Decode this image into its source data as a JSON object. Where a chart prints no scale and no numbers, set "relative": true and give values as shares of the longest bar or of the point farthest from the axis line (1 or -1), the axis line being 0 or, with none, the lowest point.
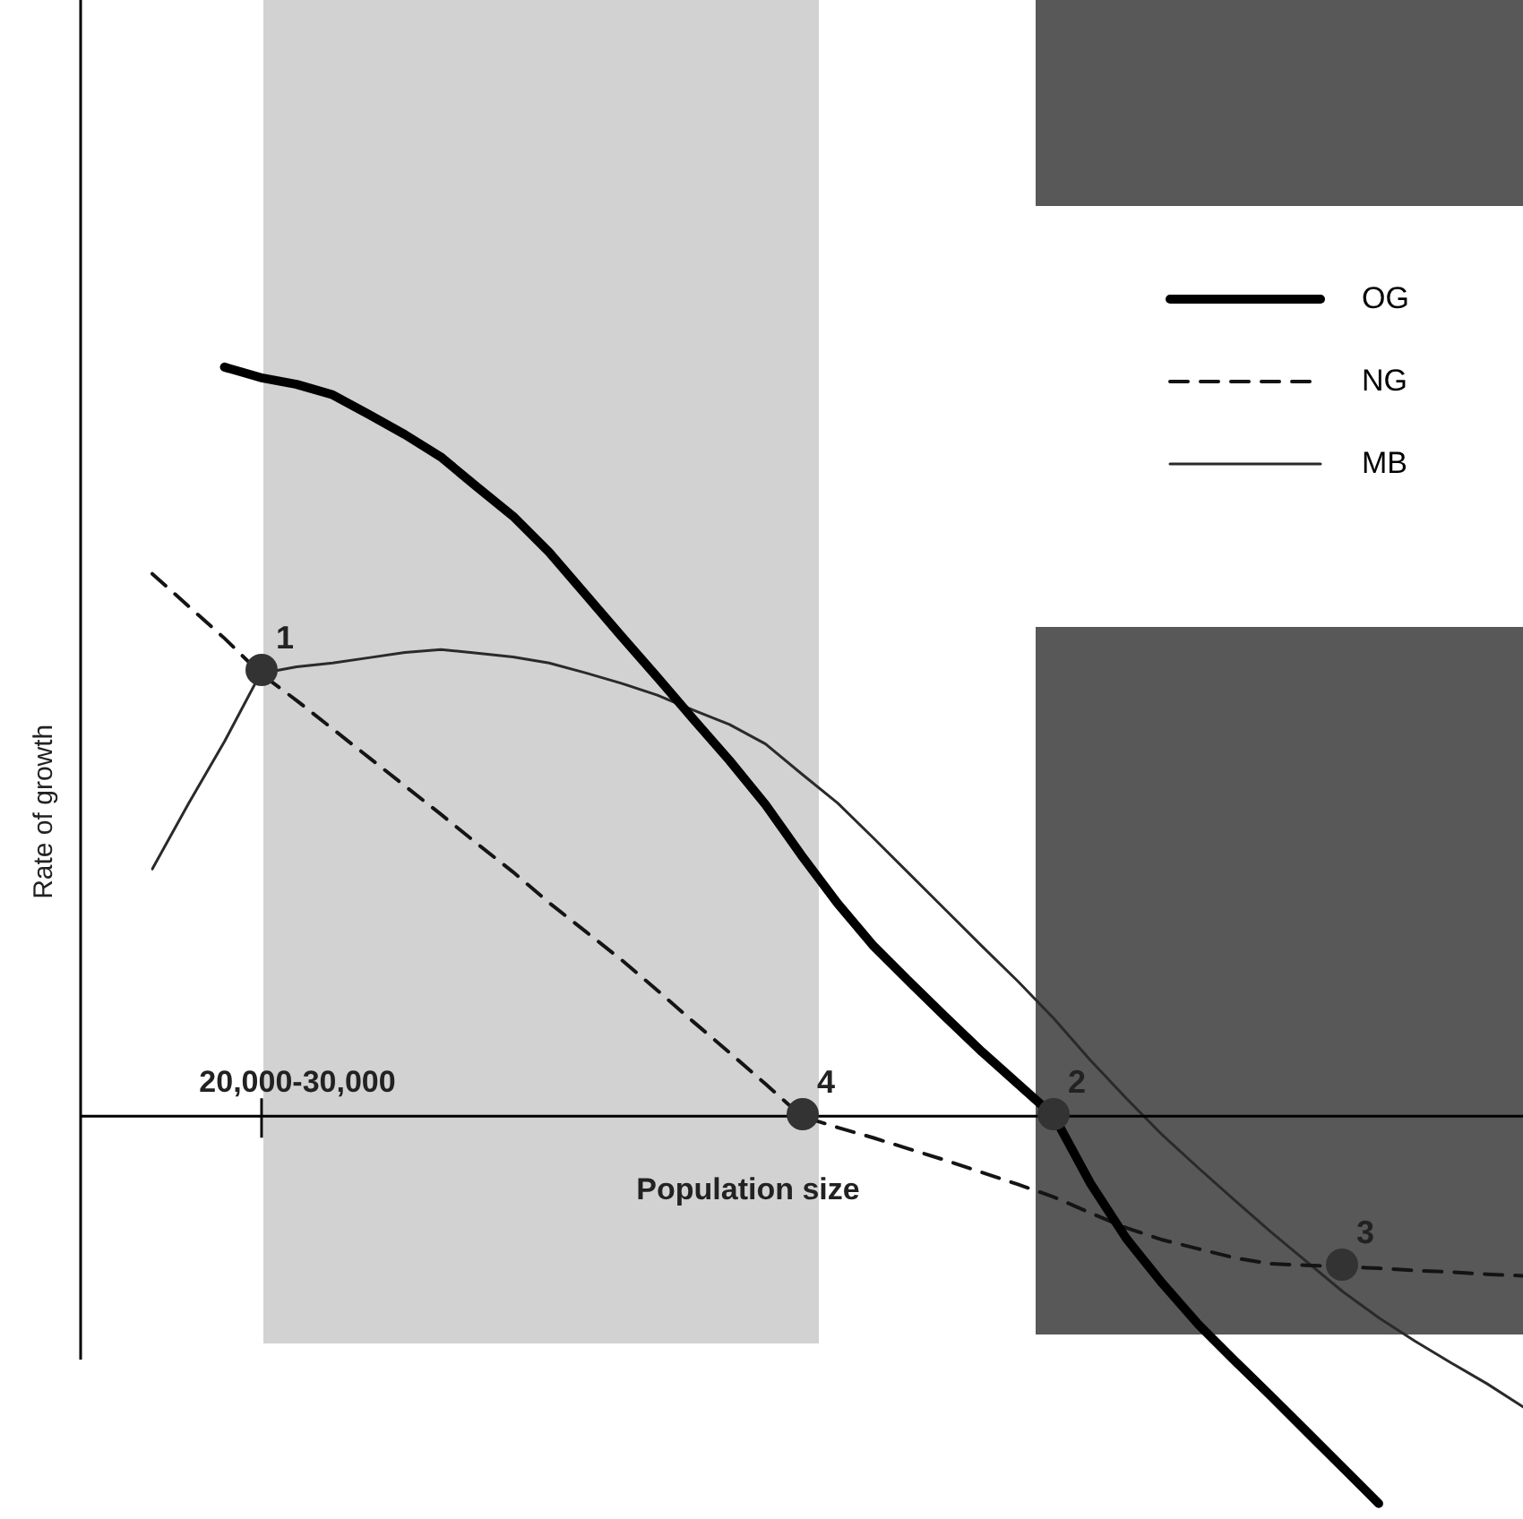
{
  "chart_data": {
    "type": "line",
    "relative": true,
    "xlabel": "Population size",
    "ylabel": "Rate of growth",
    "legend": "top right",
    "categories": [
      null,
      null,
      null,
      null,
      null,
      null,
      null,
      null,
      null,
      null,
      null,
      null,
      null,
      null,
      null,
      null,
      null,
      null,
      null,
      null,
      null,
      null,
      null,
      null,
      null,
      null,
      null,
      null,
      null,
      null,
      null,
      null,
      null,
      null,
      null,
      null,
      null,
      null,
      null
    ],
    "series": [
      {
        "name": "OG",
        "color": "#000000",
        "line_style": "solid",
        "marker": "none",
        "values": [
          null,
          null,
          1.0,
          0.986,
          0.977,
          0.963,
          0.937,
          0.91,
          0.88,
          0.84,
          0.801,
          0.753,
          0.697,
          0.641,
          0.586,
          0.53,
          0.475,
          0.416,
          0.348,
          0.284,
          0.227,
          0.179,
          0.132,
          0.086,
          0.043,
          0,
          -0.089,
          -0.163,
          -0.223,
          -0.278,
          -0.326,
          -0.373,
          -0.421,
          -0.469,
          -0.517,
          null,
          null,
          null,
          null
        ]
      },
      {
        "name": "NG",
        "color": "#141414",
        "line_style": "dashed",
        "marker": "none",
        "values": [
          0.724,
          0.681,
          0.638,
          0.591,
          0.555,
          0.517,
          0.479,
          0.441,
          0.403,
          0.364,
          0.326,
          0.285,
          0.247,
          0.209,
          0.168,
          0.126,
          0.085,
          0.043,
          0,
          -0.015,
          -0.029,
          -0.044,
          -0.059,
          -0.075,
          -0.091,
          -0.108,
          -0.129,
          -0.149,
          -0.165,
          -0.177,
          -0.189,
          -0.197,
          -0.199,
          -0.201,
          -0.203,
          -0.206,
          -0.208,
          -0.211,
          -0.213
        ]
      },
      {
        "name": "MB",
        "color": "#2a2a2a",
        "line_style": "solid",
        "marker": "none",
        "values": [
          0.33,
          0.417,
          0.5,
          0.591,
          0.6,
          0.605,
          0.612,
          0.619,
          0.623,
          0.618,
          0.613,
          0.605,
          0.592,
          0.578,
          0.562,
          0.542,
          0.523,
          0.497,
          0.457,
          0.418,
          0.371,
          0.323,
          0.275,
          0.227,
          0.18,
          0.13,
          0.075,
          0.024,
          -0.025,
          -0.069,
          -0.112,
          -0.154,
          -0.194,
          -0.234,
          -0.269,
          -0.3,
          -0.329,
          -0.357,
          -0.388
        ]
      }
    ],
    "annotations": [
      "20,000-30,000",
      "1",
      "4",
      "2",
      "3"
    ]
  }
}
